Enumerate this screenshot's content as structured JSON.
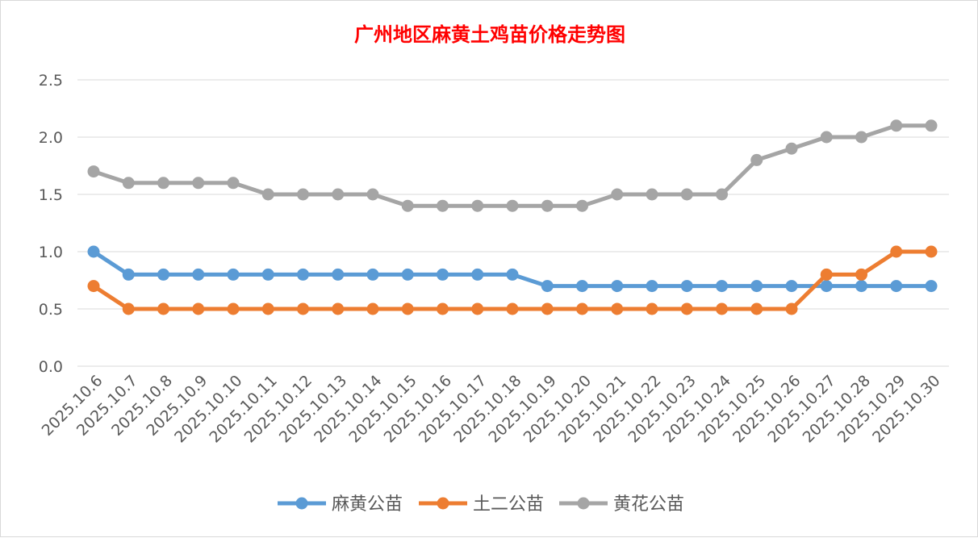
{
  "chart_data": {
    "type": "line",
    "title": "广州地区麻黄土鸡苗价格走势图",
    "xlabel": "",
    "ylabel": "",
    "ylim": [
      0,
      2.5
    ],
    "yticks": [
      "0.0",
      "0.5",
      "1.0",
      "1.5",
      "2.0",
      "2.5"
    ],
    "grid": true,
    "legend_position": "bottom",
    "categories": [
      "2025.10.6",
      "2025.10.7",
      "2025.10.8",
      "2025.10.9",
      "2025.10.10",
      "2025.10.11",
      "2025.10.12",
      "2025.10.13",
      "2025.10.14",
      "2025.10.15",
      "2025.10.16",
      "2025.10.17",
      "2025.10.18",
      "2025.10.19",
      "2025.10.20",
      "2025.10.21",
      "2025.10.22",
      "2025.10.23",
      "2025.10.24",
      "2025.10.25",
      "2025.10.26",
      "2025.10.27",
      "2025.10.28",
      "2025.10.29",
      "2025.10.30"
    ],
    "series": [
      {
        "name": "麻黄公苗",
        "color": "#5b9bd5",
        "values": [
          1.0,
          0.8,
          0.8,
          0.8,
          0.8,
          0.8,
          0.8,
          0.8,
          0.8,
          0.8,
          0.8,
          0.8,
          0.8,
          0.7,
          0.7,
          0.7,
          0.7,
          0.7,
          0.7,
          0.7,
          0.7,
          0.7,
          0.7,
          0.7,
          0.7
        ]
      },
      {
        "name": "土二公苗",
        "color": "#ed7d31",
        "values": [
          0.7,
          0.5,
          0.5,
          0.5,
          0.5,
          0.5,
          0.5,
          0.5,
          0.5,
          0.5,
          0.5,
          0.5,
          0.5,
          0.5,
          0.5,
          0.5,
          0.5,
          0.5,
          0.5,
          0.5,
          0.5,
          0.8,
          0.8,
          1.0,
          1.0
        ]
      },
      {
        "name": "黄花公苗",
        "color": "#a5a5a5",
        "values": [
          1.7,
          1.6,
          1.6,
          1.6,
          1.6,
          1.5,
          1.5,
          1.5,
          1.5,
          1.4,
          1.4,
          1.4,
          1.4,
          1.4,
          1.4,
          1.5,
          1.5,
          1.5,
          1.5,
          1.8,
          1.9,
          2.0,
          2.0,
          2.1,
          2.1
        ]
      }
    ]
  }
}
